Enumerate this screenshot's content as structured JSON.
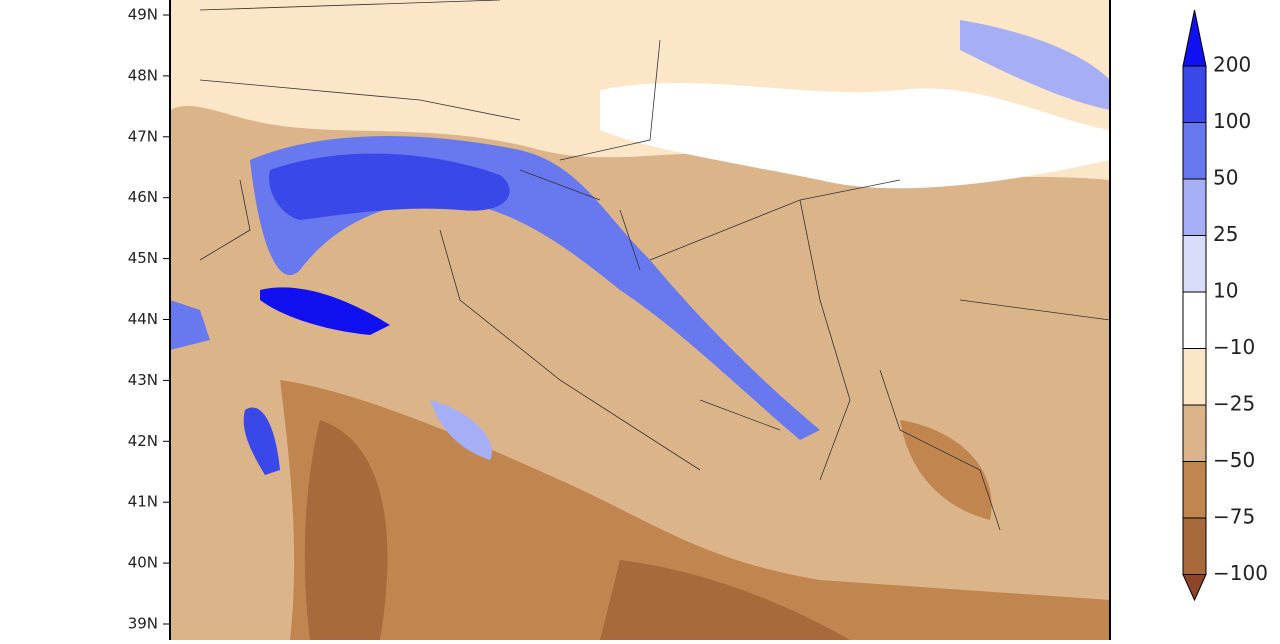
{
  "map": {
    "lat_labels": [
      "49N",
      "48N",
      "47N",
      "46N",
      "45N",
      "44N",
      "43N",
      "42N",
      "41N",
      "40N",
      "39N"
    ],
    "colorbar": {
      "labels": [
        "200",
        "100",
        "50",
        "25",
        "10",
        "−10",
        "−25",
        "−50",
        "−75",
        "−100"
      ],
      "over_color": "#1010f0",
      "under_color": "#8e4426",
      "colors": [
        "#3a48ea",
        "#6878ef",
        "#a6aef5",
        "#d9ddfa",
        "#ffffff",
        "#fbe6c8",
        "#dcb48a",
        "#c1864f",
        "#a86a3a"
      ]
    }
  }
}
